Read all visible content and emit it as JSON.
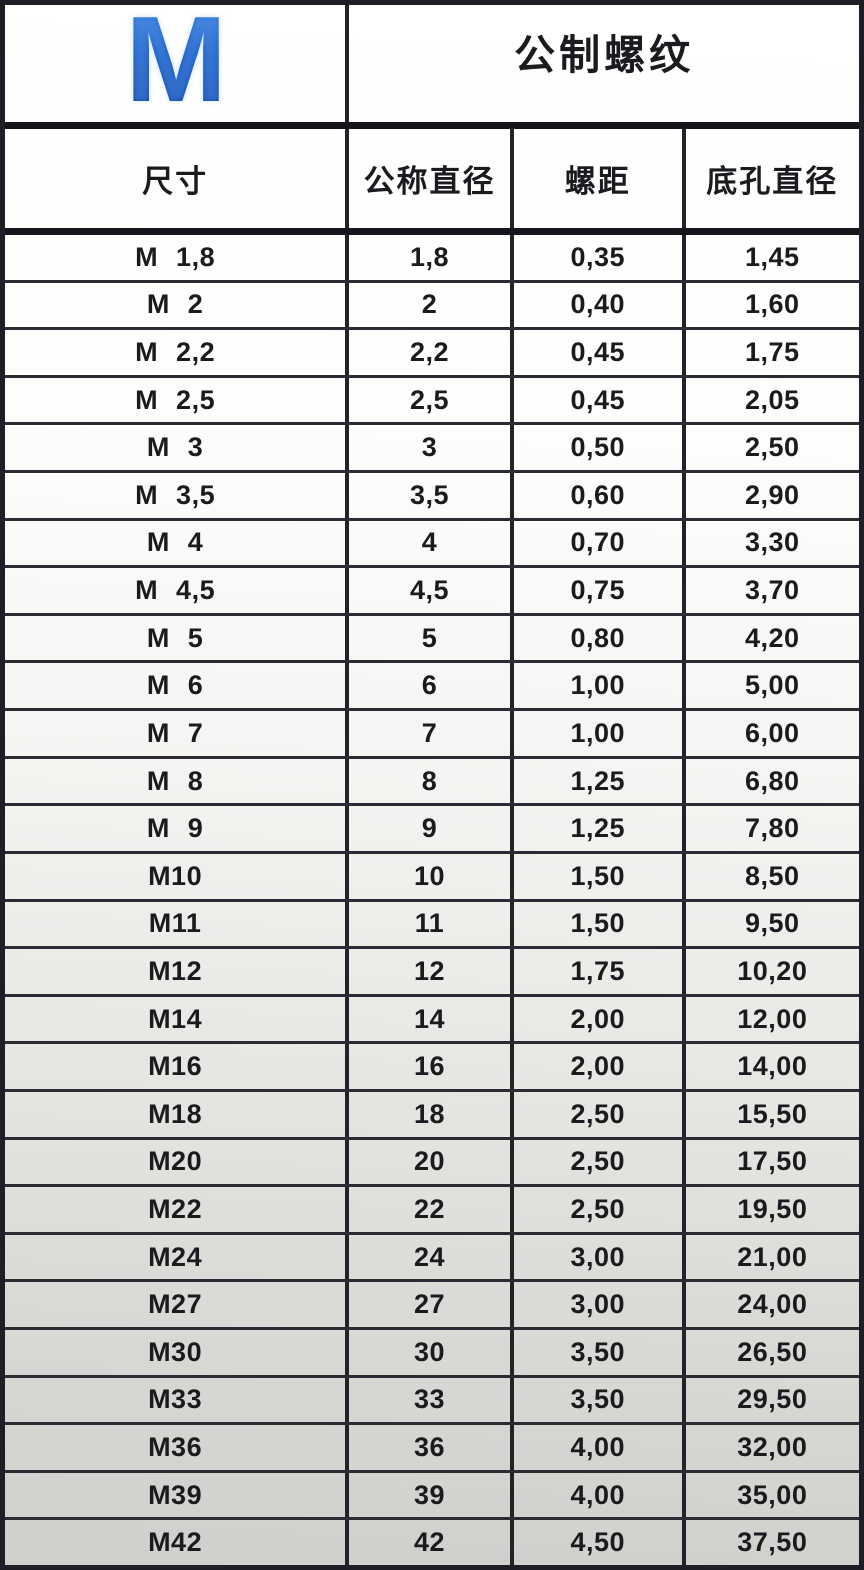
{
  "banner": {
    "logo_letter": "M",
    "title": "公制螺纹"
  },
  "columns": [
    "尺寸",
    "公称直径",
    "螺距",
    "底孔直径"
  ],
  "rows": [
    {
      "size": "M 1,8",
      "nominal": "1,8",
      "pitch": "0,35",
      "tap_drill": "1,45"
    },
    {
      "size": "M 2",
      "nominal": "2",
      "pitch": "0,40",
      "tap_drill": "1,60"
    },
    {
      "size": "M 2,2",
      "nominal": "2,2",
      "pitch": "0,45",
      "tap_drill": "1,75"
    },
    {
      "size": "M 2,5",
      "nominal": "2,5",
      "pitch": "0,45",
      "tap_drill": "2,05"
    },
    {
      "size": "M 3",
      "nominal": "3",
      "pitch": "0,50",
      "tap_drill": "2,50"
    },
    {
      "size": "M 3,5",
      "nominal": "3,5",
      "pitch": "0,60",
      "tap_drill": "2,90"
    },
    {
      "size": "M 4",
      "nominal": "4",
      "pitch": "0,70",
      "tap_drill": "3,30"
    },
    {
      "size": "M 4,5",
      "nominal": "4,5",
      "pitch": "0,75",
      "tap_drill": "3,70"
    },
    {
      "size": "M 5",
      "nominal": "5",
      "pitch": "0,80",
      "tap_drill": "4,20"
    },
    {
      "size": "M 6",
      "nominal": "6",
      "pitch": "1,00",
      "tap_drill": "5,00"
    },
    {
      "size": "M 7",
      "nominal": "7",
      "pitch": "1,00",
      "tap_drill": "6,00"
    },
    {
      "size": "M 8",
      "nominal": "8",
      "pitch": "1,25",
      "tap_drill": "6,80"
    },
    {
      "size": "M 9",
      "nominal": "9",
      "pitch": "1,25",
      "tap_drill": "7,80"
    },
    {
      "size": "M10",
      "nominal": "10",
      "pitch": "1,50",
      "tap_drill": "8,50"
    },
    {
      "size": "M11",
      "nominal": "11",
      "pitch": "1,50",
      "tap_drill": "9,50"
    },
    {
      "size": "M12",
      "nominal": "12",
      "pitch": "1,75",
      "tap_drill": "10,20"
    },
    {
      "size": "M14",
      "nominal": "14",
      "pitch": "2,00",
      "tap_drill": "12,00"
    },
    {
      "size": "M16",
      "nominal": "16",
      "pitch": "2,00",
      "tap_drill": "14,00"
    },
    {
      "size": "M18",
      "nominal": "18",
      "pitch": "2,50",
      "tap_drill": "15,50"
    },
    {
      "size": "M20",
      "nominal": "20",
      "pitch": "2,50",
      "tap_drill": "17,50"
    },
    {
      "size": "M22",
      "nominal": "22",
      "pitch": "2,50",
      "tap_drill": "19,50"
    },
    {
      "size": "M24",
      "nominal": "24",
      "pitch": "3,00",
      "tap_drill": "21,00"
    },
    {
      "size": "M27",
      "nominal": "27",
      "pitch": "3,00",
      "tap_drill": "24,00"
    },
    {
      "size": "M30",
      "nominal": "30",
      "pitch": "3,50",
      "tap_drill": "26,50"
    },
    {
      "size": "M33",
      "nominal": "33",
      "pitch": "3,50",
      "tap_drill": "29,50"
    },
    {
      "size": "M36",
      "nominal": "36",
      "pitch": "4,00",
      "tap_drill": "32,00"
    },
    {
      "size": "M39",
      "nominal": "39",
      "pitch": "4,00",
      "tap_drill": "35,00"
    },
    {
      "size": "M42",
      "nominal": "42",
      "pitch": "4,50",
      "tap_drill": "37,50"
    }
  ],
  "colors": {
    "logo_blue": "#0d53c4",
    "border_dark": "#1e1e26",
    "row_line": "#2b2b33",
    "text": "#1b1b1f",
    "background_top": "#ffffff",
    "background_bottom": "#cfcfcc"
  }
}
